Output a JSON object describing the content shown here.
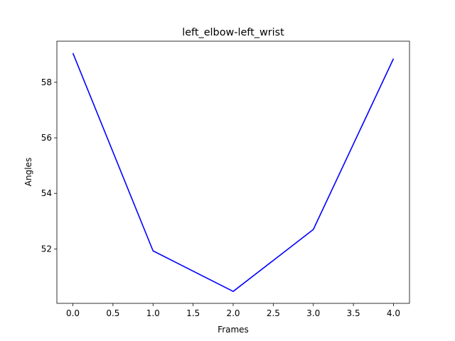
{
  "chart_data": {
    "type": "line",
    "title": "left_elbow-left_wrist",
    "xlabel": "Frames",
    "ylabel": "Angles",
    "x": [
      0,
      1,
      2,
      3,
      4
    ],
    "series": [
      {
        "values": [
          59.05,
          51.93,
          50.47,
          52.7,
          58.85
        ],
        "color": "#0000ff"
      }
    ],
    "xlim": [
      -0.2,
      4.2
    ],
    "ylim": [
      50.04,
      59.48
    ],
    "xticks": [
      0,
      0.5,
      1,
      1.5,
      2,
      2.5,
      3,
      3.5,
      4
    ],
    "xtick_labels": [
      "0.0",
      "0.5",
      "1.0",
      "1.5",
      "2.0",
      "2.5",
      "3.0",
      "3.5",
      "4.0"
    ],
    "yticks": [
      52,
      54,
      56,
      58
    ],
    "ytick_labels": [
      "52",
      "54",
      "56",
      "58"
    ],
    "grid": false,
    "legend": "none"
  }
}
